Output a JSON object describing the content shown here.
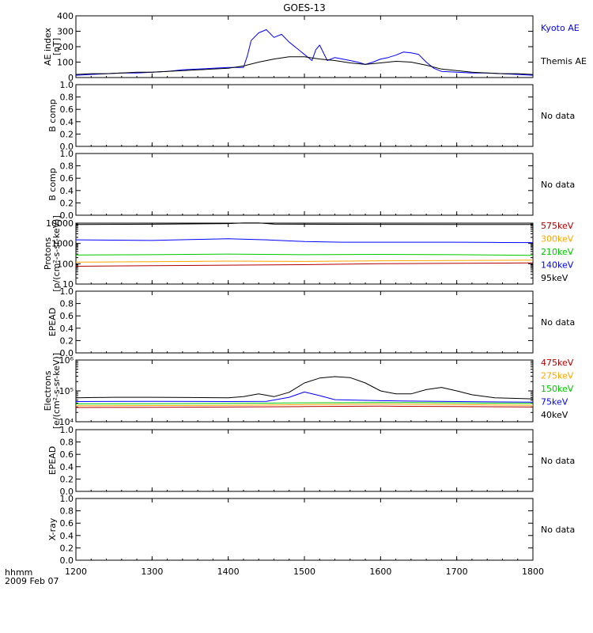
{
  "title": "GOES-13",
  "footer": {
    "line1": "hhmm",
    "line2": "2009 Feb 07"
  },
  "chart_data": {
    "type": "line",
    "x_range": [
      1200,
      1800
    ],
    "x_ticks": [
      "1200",
      "1300",
      "1400",
      "1500",
      "1600",
      "1700",
      "1800"
    ],
    "panels": [
      {
        "id": "ae",
        "ylabel": [
          "AE index",
          "[nT]"
        ],
        "scale": "linear",
        "ylim": [
          0,
          400
        ],
        "ytick_values": [
          0,
          100,
          200,
          300,
          400
        ],
        "ytick_labels": [
          "0",
          "100",
          "200",
          "300",
          "400"
        ],
        "series": [
          {
            "name": "Kyoto AE",
            "color": "#0000ff",
            "x": [
              1200,
              1220,
              1240,
              1260,
              1280,
              1300,
              1320,
              1340,
              1360,
              1380,
              1400,
              1420,
              1425,
              1430,
              1440,
              1450,
              1460,
              1470,
              1480,
              1490,
              1500,
              1510,
              1515,
              1520,
              1530,
              1540,
              1550,
              1560,
              1570,
              1580,
              1590,
              1600,
              1610,
              1620,
              1630,
              1640,
              1650,
              1660,
              1670,
              1680,
              1700,
              1720,
              1740,
              1760,
              1780,
              1800
            ],
            "y": [
              15,
              20,
              25,
              30,
              30,
              35,
              40,
              50,
              55,
              60,
              65,
              65,
              140,
              240,
              290,
              310,
              260,
              280,
              230,
              190,
              150,
              110,
              180,
              210,
              110,
              130,
              120,
              110,
              100,
              85,
              100,
              120,
              130,
              145,
              165,
              160,
              150,
              100,
              60,
              40,
              35,
              30,
              30,
              25,
              20,
              15
            ]
          },
          {
            "name": "Themis AE",
            "color": "#000000",
            "x": [
              1200,
              1220,
              1240,
              1260,
              1280,
              1300,
              1320,
              1340,
              1360,
              1380,
              1400,
              1420,
              1440,
              1460,
              1480,
              1500,
              1520,
              1540,
              1560,
              1580,
              1600,
              1620,
              1640,
              1660,
              1680,
              1700,
              1720,
              1740,
              1760,
              1780,
              1800
            ],
            "y": [
              20,
              25,
              25,
              30,
              35,
              35,
              40,
              45,
              50,
              55,
              60,
              75,
              100,
              120,
              135,
              135,
              120,
              110,
              95,
              85,
              95,
              105,
              100,
              80,
              55,
              45,
              35,
              30,
              25,
              25,
              20
            ]
          }
        ]
      },
      {
        "id": "bcomp1",
        "ylabel": [
          "B comp"
        ],
        "scale": "linear",
        "ylim": [
          0,
          1
        ],
        "ytick_values": [
          0,
          0.2,
          0.4,
          0.6,
          0.8,
          1.0
        ],
        "ytick_labels": [
          "0.0",
          "0.2",
          "0.4",
          "0.6",
          "0.8",
          "1.0"
        ],
        "series": [],
        "no_data": "No data"
      },
      {
        "id": "bcomp2",
        "ylabel": [
          "B comp"
        ],
        "scale": "linear",
        "ylim": [
          0,
          1
        ],
        "ytick_values": [
          0,
          0.2,
          0.4,
          0.6,
          0.8,
          1.0
        ],
        "ytick_labels": [
          "0.0",
          "0.2",
          "0.4",
          "0.6",
          "0.8",
          "1.0"
        ],
        "series": [],
        "no_data": "No data"
      },
      {
        "id": "protons",
        "ylabel": [
          "Protons",
          "[p/(cm²-s-sr-keV)]"
        ],
        "scale": "log",
        "ylim": [
          10,
          10000
        ],
        "ytick_values": [
          10,
          100,
          1000,
          10000
        ],
        "ytick_labels": [
          "10",
          "100",
          "1000",
          "10000"
        ],
        "series": [
          {
            "name": "95keV",
            "color": "#000000",
            "x": [
              1200,
              1300,
              1400,
              1420,
              1440,
              1460,
              1500,
              1600,
              1700,
              1800
            ],
            "y": [
              8500,
              8800,
              9500,
              10200,
              10300,
              8900,
              8800,
              8700,
              8600,
              8500
            ]
          },
          {
            "name": "140keV",
            "color": "#0000ff",
            "x": [
              1200,
              1250,
              1300,
              1350,
              1400,
              1450,
              1500,
              1550,
              1600,
              1650,
              1700,
              1750,
              1800
            ],
            "y": [
              1500,
              1450,
              1400,
              1550,
              1700,
              1500,
              1250,
              1150,
              1150,
              1150,
              1150,
              1120,
              1100
            ]
          },
          {
            "name": "210keV",
            "color": "#00c800",
            "x": [
              1200,
              1300,
              1400,
              1500,
              1600,
              1700,
              1800
            ],
            "y": [
              270,
              280,
              300,
              280,
              290,
              280,
              260
            ]
          },
          {
            "name": "300keV",
            "color": "#ffa500",
            "x": [
              1200,
              1300,
              1400,
              1500,
              1600,
              1700,
              1800
            ],
            "y": [
              120,
              125,
              135,
              130,
              140,
              145,
              150
            ]
          },
          {
            "name": "575keV",
            "color": "#b00000",
            "x": [
              1200,
              1300,
              1400,
              1500,
              1600,
              1700,
              1800
            ],
            "y": [
              75,
              80,
              85,
              90,
              100,
              105,
              110
            ]
          }
        ]
      },
      {
        "id": "epead1",
        "ylabel": [
          "EPEAD"
        ],
        "scale": "linear",
        "ylim": [
          0,
          1
        ],
        "ytick_values": [
          0,
          0.2,
          0.4,
          0.6,
          0.8,
          1.0
        ],
        "ytick_labels": [
          "0.0",
          "0.2",
          "0.4",
          "0.6",
          "0.8",
          "1.0"
        ],
        "series": [],
        "no_data": "No data"
      },
      {
        "id": "electrons",
        "ylabel": [
          "Electrons",
          "[e/(cm²-s-sr-keV)]"
        ],
        "scale": "log",
        "ylim": [
          10000,
          1000000
        ],
        "ytick_values": [
          10000,
          100000,
          1000000
        ],
        "ytick_labels": [
          "10⁴",
          "10⁵",
          "10⁶"
        ],
        "series": [
          {
            "name": "40keV",
            "color": "#000000",
            "x": [
              1200,
              1250,
              1300,
              1350,
              1400,
              1420,
              1440,
              1460,
              1480,
              1500,
              1520,
              1540,
              1560,
              1580,
              1600,
              1620,
              1640,
              1660,
              1680,
              1700,
              1720,
              1750,
              1800
            ],
            "y": [
              60000,
              62000,
              62000,
              61000,
              60000,
              65000,
              80000,
              65000,
              90000,
              180000,
              260000,
              290000,
              270000,
              180000,
              100000,
              80000,
              80000,
              110000,
              130000,
              100000,
              75000,
              60000,
              55000
            ]
          },
          {
            "name": "75keV",
            "color": "#0000ff",
            "x": [
              1200,
              1300,
              1400,
              1450,
              1480,
              1500,
              1520,
              1540,
              1600,
              1700,
              1800
            ],
            "y": [
              45000,
              46000,
              45000,
              46000,
              62000,
              92000,
              70000,
              52000,
              48000,
              45000,
              43000
            ]
          },
          {
            "name": "150keV",
            "color": "#00c800",
            "x": [
              1200,
              1300,
              1400,
              1500,
              1600,
              1700,
              1800
            ],
            "y": [
              38000,
              38500,
              39000,
              41000,
              42000,
              41000,
              39000
            ]
          },
          {
            "name": "275keV",
            "color": "#ffa500",
            "x": [
              1200,
              1300,
              1400,
              1500,
              1600,
              1700,
              1800
            ],
            "y": [
              33000,
              33500,
              34000,
              36000,
              37000,
              36000,
              34000
            ]
          },
          {
            "name": "475keV",
            "color": "#b00000",
            "x": [
              1200,
              1300,
              1400,
              1500,
              1600,
              1700,
              1800
            ],
            "y": [
              29000,
              29500,
              30000,
              31000,
              32000,
              31000,
              30000
            ]
          }
        ]
      },
      {
        "id": "epead2",
        "ylabel": [
          "EPEAD"
        ],
        "scale": "linear",
        "ylim": [
          0,
          1
        ],
        "ytick_values": [
          0,
          0.2,
          0.4,
          0.6,
          0.8,
          1.0
        ],
        "ytick_labels": [
          "0.0",
          "0.2",
          "0.4",
          "0.6",
          "0.8",
          "1.0"
        ],
        "series": [],
        "no_data": "No data"
      },
      {
        "id": "xray",
        "ylabel": [
          "X-ray"
        ],
        "scale": "linear",
        "ylim": [
          0,
          1
        ],
        "ytick_values": [
          0,
          0.2,
          0.4,
          0.6,
          0.8,
          1.0
        ],
        "ytick_labels": [
          "0.0",
          "0.2",
          "0.4",
          "0.6",
          "0.8",
          "1.0"
        ],
        "series": [],
        "no_data": "No data"
      }
    ]
  }
}
